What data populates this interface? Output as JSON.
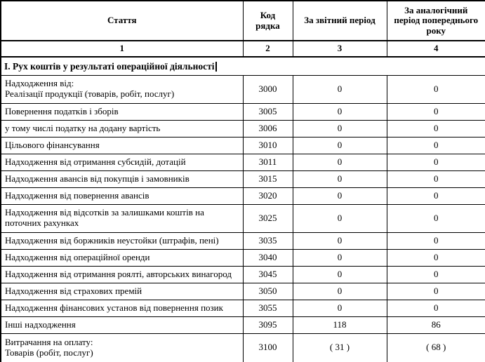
{
  "document": {
    "columns": {
      "article": "Стаття",
      "code": "Код\nрядка",
      "reporting_period": "За звітний період",
      "previous_period": "За аналогічний\nперіод попереднього\nроку"
    },
    "column_numbers": [
      "1",
      "2",
      "3",
      "4"
    ],
    "section_title": "І. Рух коштів у результаті операційної діяльності",
    "rows": [
      {
        "article": "Надходження від:\nРеалізації продукції (товарів, робіт, послуг)",
        "code": "3000",
        "reporting": "0",
        "previous": "0"
      },
      {
        "article": "Повернення податків і зборів",
        "code": "3005",
        "reporting": "0",
        "previous": "0"
      },
      {
        "article": "у тому числі податку на додану вартість",
        "code": "3006",
        "reporting": "0",
        "previous": "0"
      },
      {
        "article": "Цільового фінансування",
        "code": "3010",
        "reporting": "0",
        "previous": "0"
      },
      {
        "article": "Надходження від отримання субсидій, дотацій",
        "code": "3011",
        "reporting": "0",
        "previous": "0"
      },
      {
        "article": "Надходження авансів від покупців і замовників",
        "code": "3015",
        "reporting": "0",
        "previous": "0"
      },
      {
        "article": "Надходження від повернення авансів",
        "code": "3020",
        "reporting": "0",
        "previous": "0"
      },
      {
        "article": "Надходження від відсотків за залишками коштів на\nпоточних рахунках",
        "code": "3025",
        "reporting": "0",
        "previous": "0"
      },
      {
        "article": "Надходження від боржників неустойки (штрафів, пені)",
        "code": "3035",
        "reporting": "0",
        "previous": "0"
      },
      {
        "article": "Надходження від операційної оренди",
        "code": "3040",
        "reporting": "0",
        "previous": "0"
      },
      {
        "article": "Надходження від отримання роялті, авторських винагород",
        "code": "3045",
        "reporting": "0",
        "previous": "0"
      },
      {
        "article": "Надходження від страхових премій",
        "code": "3050",
        "reporting": "0",
        "previous": "0"
      },
      {
        "article": "Надходження фінансових установ від повернення позик",
        "code": "3055",
        "reporting": "0",
        "previous": "0"
      },
      {
        "article": "Інші надходження",
        "code": "3095",
        "reporting": "118",
        "previous": "86"
      },
      {
        "article": "Витрачання на оплату:\nТоварів (робіт, послуг)",
        "code": "3100",
        "reporting": "( 31 )",
        "previous": "( 68 )"
      }
    ]
  },
  "colors": {
    "background": "#ffffff",
    "text": "#000000",
    "border": "#000000"
  }
}
